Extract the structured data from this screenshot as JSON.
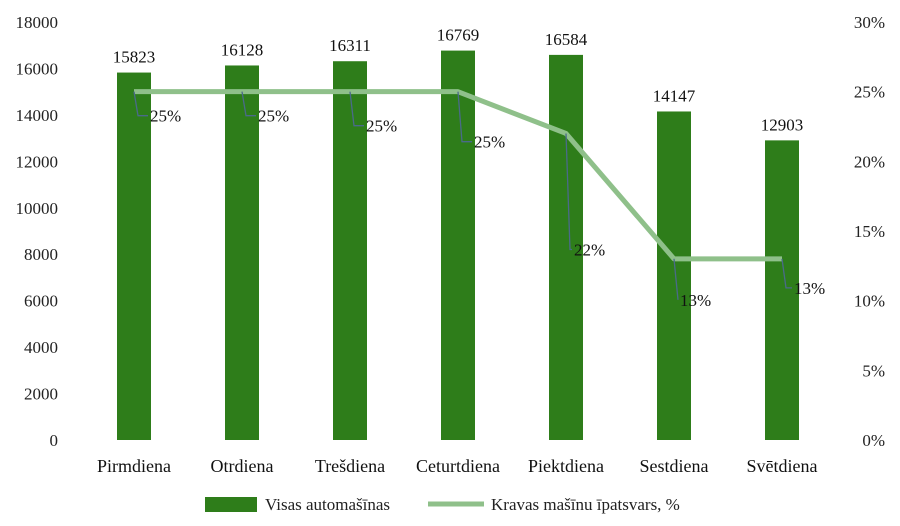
{
  "chart_data": {
    "type": "bar",
    "categories": [
      "Pirmdiena",
      "Otrdiena",
      "Trešdiena",
      "Ceturtdiena",
      "Piektdiena",
      "Sestdiena",
      "Svētdiena"
    ],
    "series": [
      {
        "name": "Visas automašīnas",
        "type": "bar",
        "axis": "left",
        "values": [
          15823,
          16128,
          16311,
          16769,
          16584,
          14147,
          12903
        ],
        "labels": [
          "15823",
          "16128",
          "16311",
          "16769",
          "16584",
          "14147",
          "12903"
        ],
        "color": "#2e7d1a"
      },
      {
        "name": "Kravas mašīnu īpatsvars, %",
        "type": "line",
        "axis": "right",
        "values": [
          25,
          25,
          25,
          25,
          22,
          13,
          13
        ],
        "labels": [
          "25%",
          "25%",
          "25%",
          "25%",
          "22%",
          "13%",
          "13%"
        ],
        "color": "#8fc08a"
      }
    ],
    "y_left": {
      "ylim": [
        0,
        18000
      ],
      "ticks": [
        "0",
        "2000",
        "4000",
        "6000",
        "8000",
        "10000",
        "12000",
        "14000",
        "16000",
        "18000"
      ]
    },
    "y_right": {
      "ylim": [
        0,
        30
      ],
      "ticks": [
        "0%",
        "5%",
        "10%",
        "15%",
        "20%",
        "25%",
        "30%"
      ]
    },
    "legend_position": "bottom",
    "grid": false
  }
}
